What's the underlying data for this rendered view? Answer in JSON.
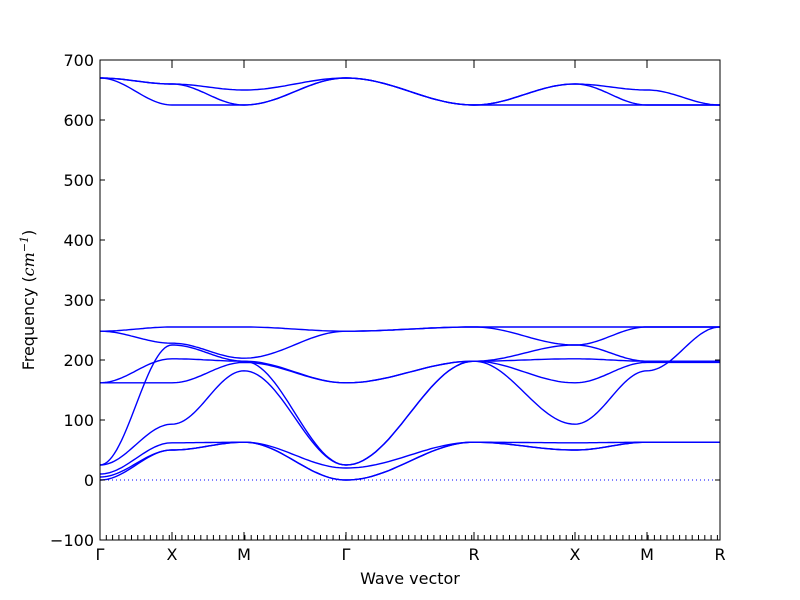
{
  "chart_data": {
    "type": "line",
    "xlabel": "Wave vector",
    "ylabel_text": "Frequency (",
    "ylabel_math": "cm",
    "ylabel_sup": "−1",
    "ylabel_close": ")",
    "ylim": [
      -100,
      700
    ],
    "yticks": [
      -100,
      0,
      100,
      200,
      300,
      400,
      500,
      600,
      700
    ],
    "xlim": [
      0,
      620
    ],
    "kpoints": [
      {
        "label": "Γ",
        "x": 0
      },
      {
        "label": "X",
        "x": 72
      },
      {
        "label": "M",
        "x": 144
      },
      {
        "label": "Γ",
        "x": 246
      },
      {
        "label": "R",
        "x": 374
      },
      {
        "label": "X",
        "x": 475
      },
      {
        "label": "M",
        "x": 547
      },
      {
        "label": "R",
        "x": 620
      }
    ],
    "zero_line": true,
    "line_color": "#0000ff",
    "series": [
      {
        "values": [
          [
            0,
            670
          ],
          [
            72,
            660
          ],
          [
            144,
            650
          ],
          [
            246,
            670
          ],
          [
            374,
            625
          ],
          [
            475,
            660
          ],
          [
            547,
            650
          ],
          [
            620,
            625
          ]
        ]
      },
      {
        "values": [
          [
            0,
            670
          ],
          [
            72,
            660
          ],
          [
            144,
            625
          ],
          [
            246,
            670
          ],
          [
            374,
            625
          ],
          [
            475,
            660
          ],
          [
            547,
            625
          ],
          [
            620,
            625
          ]
        ]
      },
      {
        "values": [
          [
            0,
            670
          ],
          [
            72,
            625
          ],
          [
            144,
            625
          ],
          [
            246,
            670
          ],
          [
            374,
            625
          ],
          [
            475,
            625
          ],
          [
            547,
            625
          ],
          [
            620,
            625
          ]
        ]
      },
      {
        "values": [
          [
            0,
            248
          ],
          [
            72,
            255
          ],
          [
            144,
            255
          ],
          [
            246,
            248
          ],
          [
            374,
            255
          ],
          [
            475,
            255
          ],
          [
            547,
            255
          ],
          [
            620,
            255
          ]
        ]
      },
      {
        "values": [
          [
            0,
            248
          ],
          [
            72,
            228
          ],
          [
            144,
            203
          ],
          [
            246,
            248
          ],
          [
            374,
            255
          ],
          [
            475,
            225
          ],
          [
            547,
            255
          ],
          [
            620,
            255
          ]
        ]
      },
      {
        "values": [
          [
            0,
            162
          ],
          [
            72,
            202
          ],
          [
            144,
            198
          ],
          [
            246,
            162
          ],
          [
            374,
            198
          ],
          [
            475,
            202
          ],
          [
            547,
            198
          ],
          [
            620,
            198
          ]
        ]
      },
      {
        "values": [
          [
            0,
            162
          ],
          [
            72,
            162
          ],
          [
            144,
            196
          ],
          [
            246,
            162
          ],
          [
            374,
            198
          ],
          [
            475,
            162
          ],
          [
            547,
            196
          ],
          [
            620,
            196
          ]
        ]
      },
      {
        "values": [
          [
            0,
            25
          ],
          [
            72,
            93
          ],
          [
            144,
            182
          ],
          [
            246,
            25
          ],
          [
            374,
            198
          ],
          [
            475,
            93
          ],
          [
            547,
            182
          ],
          [
            620,
            255
          ]
        ]
      },
      {
        "values": [
          [
            0,
            25
          ],
          [
            72,
            225
          ],
          [
            144,
            198
          ],
          [
            246,
            25
          ],
          [
            374,
            198
          ],
          [
            475,
            225
          ],
          [
            547,
            198
          ],
          [
            620,
            198
          ]
        ]
      },
      {
        "values": [
          [
            0,
            10
          ],
          [
            72,
            62
          ],
          [
            144,
            63
          ],
          [
            246,
            0
          ],
          [
            374,
            63
          ],
          [
            475,
            62
          ],
          [
            547,
            63
          ],
          [
            620,
            63
          ]
        ]
      },
      {
        "values": [
          [
            0,
            0
          ],
          [
            72,
            50
          ],
          [
            144,
            63
          ],
          [
            246,
            0
          ],
          [
            374,
            63
          ],
          [
            475,
            50
          ],
          [
            547,
            63
          ],
          [
            620,
            63
          ]
        ]
      },
      {
        "values": [
          [
            0,
            5
          ],
          [
            72,
            50
          ],
          [
            144,
            63
          ],
          [
            246,
            20
          ],
          [
            374,
            63
          ],
          [
            475,
            50
          ],
          [
            547,
            63
          ],
          [
            620,
            63
          ]
        ]
      }
    ]
  }
}
